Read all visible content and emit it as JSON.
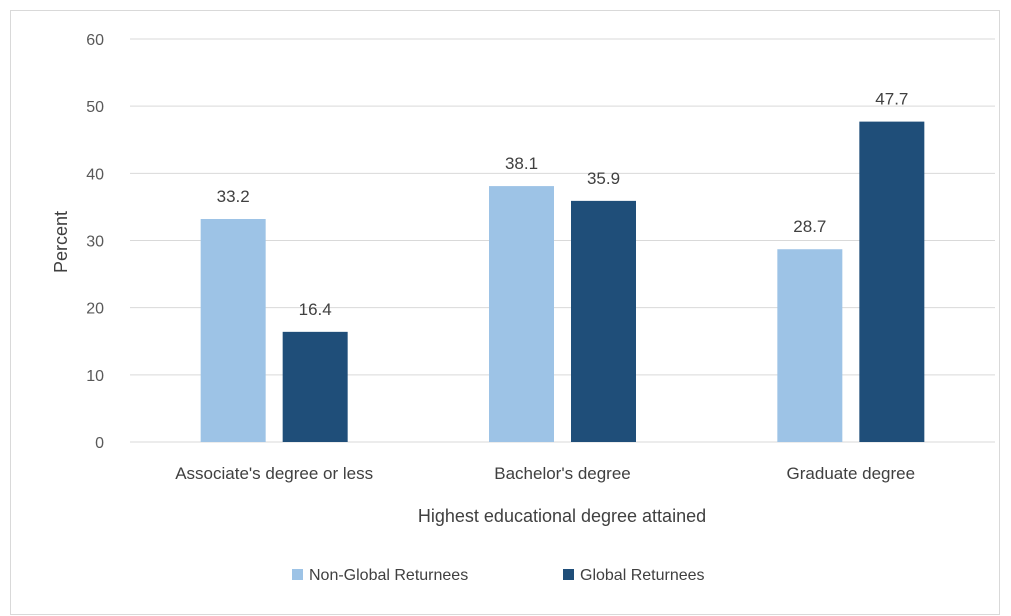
{
  "chart_data": {
    "type": "bar",
    "categories": [
      "Associate's degree or less",
      "Bachelor's degree",
      "Graduate degree"
    ],
    "series": [
      {
        "name": "Non-Global Returnees",
        "values": [
          33.2,
          38.1,
          28.7
        ],
        "color": "#9dc3e6"
      },
      {
        "name": "Global Returnees",
        "values": [
          16.4,
          35.9,
          47.7
        ],
        "color": "#1f4e79"
      }
    ],
    "xlabel": "Highest educational degree attained",
    "ylabel": "Percent",
    "ylim": [
      0,
      60
    ],
    "yticks": [
      "0",
      "10",
      "20",
      "30",
      "40",
      "50",
      "60"
    ],
    "data_labels": [
      [
        "33.2",
        "38.1",
        "28.7"
      ],
      [
        "16.4",
        "35.9",
        "47.7"
      ]
    ],
    "grid": true,
    "legend_position": "bottom"
  }
}
